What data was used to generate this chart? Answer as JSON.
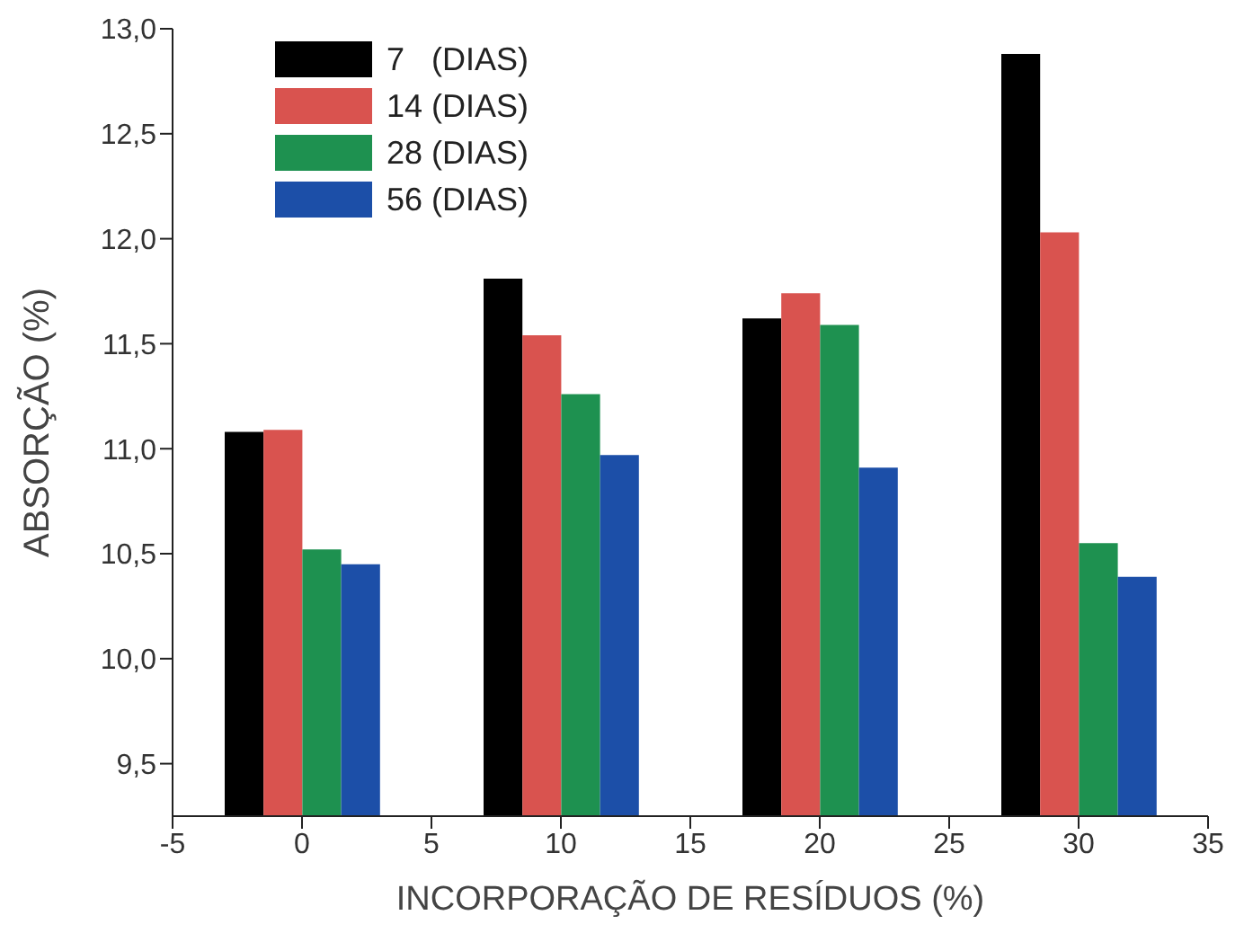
{
  "chart_data": {
    "type": "bar",
    "xlabel": "INCORPORAÇÃO DE RESÍDUOS (%)",
    "ylabel": "ABSORÇÃO (%)",
    "x": [
      0,
      10,
      20,
      30
    ],
    "series": [
      {
        "name": "7   (DIAS)",
        "color": "#000000",
        "values": [
          11.08,
          11.81,
          11.62,
          12.88
        ]
      },
      {
        "name": "14 (DIAS)",
        "color": "#d9534f",
        "values": [
          11.09,
          11.54,
          11.74,
          12.03
        ]
      },
      {
        "name": "28 (DIAS)",
        "color": "#1e9150",
        "values": [
          10.52,
          11.26,
          11.59,
          10.55
        ]
      },
      {
        "name": "56 (DIAS)",
        "color": "#1c4fa8",
        "values": [
          10.45,
          10.97,
          10.91,
          10.39
        ]
      }
    ],
    "xlim": [
      -5,
      35
    ],
    "xticks": [
      -5,
      0,
      5,
      10,
      15,
      20,
      25,
      30,
      35
    ],
    "ylim": [
      9.25,
      13.0
    ],
    "yticks": [
      {
        "value": 9.5,
        "label": "9,5"
      },
      {
        "value": 10.0,
        "label": "10,0"
      },
      {
        "value": 10.5,
        "label": "10,5"
      },
      {
        "value": 11.0,
        "label": "11,0"
      },
      {
        "value": 11.5,
        "label": "11,5"
      },
      {
        "value": 12.0,
        "label": "12,0"
      },
      {
        "value": 12.5,
        "label": "12,5"
      },
      {
        "value": 13.0,
        "label": "13,0"
      }
    ],
    "grid": false,
    "legend": "top left"
  }
}
